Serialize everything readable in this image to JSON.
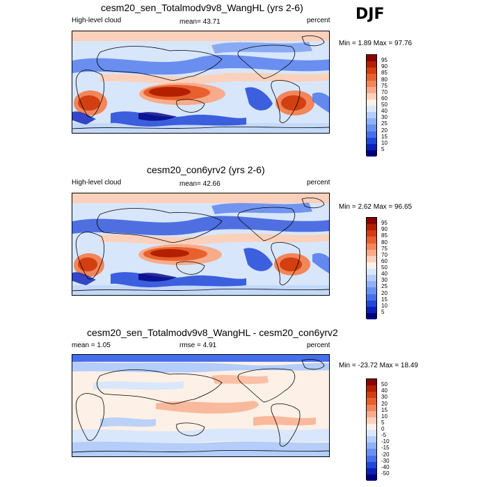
{
  "season": "DJF",
  "panels": [
    {
      "title": "cesm20_sen_Totalmodv9v8_WangHL (yrs 2-6)",
      "left_label": "High-level cloud",
      "center_label": "mean=  43.71",
      "right_label": "percent",
      "minmax": "Min =   1.89 Max =  97.76"
    },
    {
      "title": "cesm20_con6yrv2 (yrs 2-6)",
      "left_label": "High-level cloud",
      "center_label": "mean=  42.66",
      "right_label": "percent",
      "minmax": "Min =   2.62 Max =  96.65"
    },
    {
      "title": "cesm20_sen_Totalmodv9v8_WangHL - cesm20_con6yrv2",
      "left_label": "mean =   1.05",
      "center_label": "rmse =   4.91",
      "right_label": "percent",
      "minmax": "Min = -23.72 Max =  18.49"
    }
  ],
  "colorbars": {
    "absolute": {
      "levels": [
        "95",
        "90",
        "85",
        "80",
        "75",
        "70",
        "60",
        "50",
        "40",
        "30",
        "25",
        "20",
        "15",
        "10",
        "5"
      ],
      "colors": [
        "#8b0000",
        "#b22000",
        "#d23f10",
        "#e8602d",
        "#f2855a",
        "#f8ab8a",
        "#fbd1bc",
        "#fdf0e6",
        "#d9e7fc",
        "#b4cdfa",
        "#8fb1f6",
        "#6a91f0",
        "#4670eb",
        "#2147d8",
        "#0b20b8",
        "#00007f"
      ]
    },
    "difference": {
      "levels": [
        "50",
        "40",
        "30",
        "20",
        "15",
        "10",
        "5",
        "0",
        "-5",
        "-10",
        "-15",
        "-20",
        "-30",
        "-40",
        "-50"
      ],
      "colors": [
        "#8b0000",
        "#b22000",
        "#d23f10",
        "#e8602d",
        "#f2855a",
        "#f8ab8a",
        "#fbd1bc",
        "#fdf0e6",
        "#d9e7fc",
        "#b4cdfa",
        "#8fb1f6",
        "#6a91f0",
        "#4670eb",
        "#2147d8",
        "#0b20b8",
        "#00007f"
      ]
    }
  },
  "chart_data": [
    {
      "type": "heatmap",
      "title": "cesm20_sen_Totalmodv9v8_WangHL (yrs 2-6)",
      "variable": "High-level cloud",
      "units": "percent",
      "mean": 43.71,
      "min": 1.89,
      "max": 97.76,
      "levels": [
        5,
        10,
        15,
        20,
        25,
        30,
        40,
        50,
        60,
        70,
        75,
        80,
        85,
        90,
        95
      ]
    },
    {
      "type": "heatmap",
      "title": "cesm20_con6yrv2 (yrs 2-6)",
      "variable": "High-level cloud",
      "units": "percent",
      "mean": 42.66,
      "min": 2.62,
      "max": 96.65,
      "levels": [
        5,
        10,
        15,
        20,
        25,
        30,
        40,
        50,
        60,
        70,
        75,
        80,
        85,
        90,
        95
      ]
    },
    {
      "type": "heatmap",
      "title": "cesm20_sen_Totalmodv9v8_WangHL - cesm20_con6yrv2",
      "units": "percent",
      "mean": 1.05,
      "rmse": 4.91,
      "min": -23.72,
      "max": 18.49,
      "levels": [
        -50,
        -40,
        -30,
        -20,
        -15,
        -10,
        -5,
        0,
        5,
        10,
        15,
        20,
        30,
        40,
        50
      ]
    }
  ]
}
